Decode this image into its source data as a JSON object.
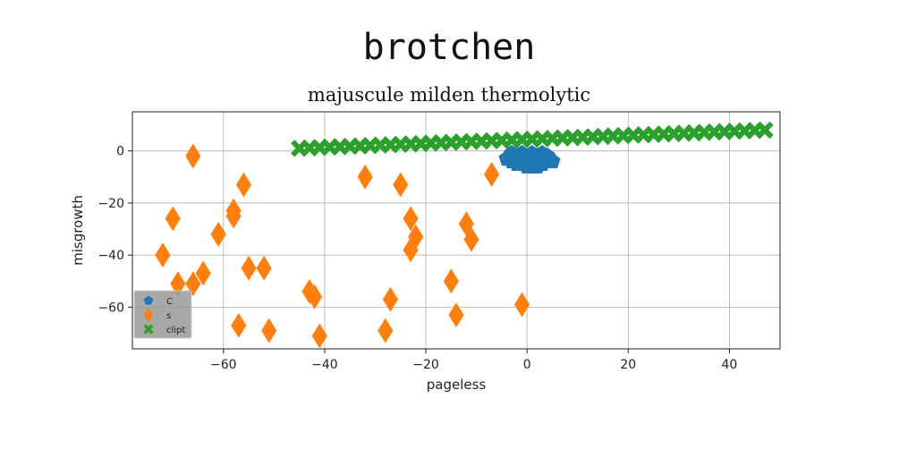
{
  "chart_data": {
    "type": "scatter",
    "title": "brotchen",
    "subtitle": "majuscule milden thermolytic",
    "xlabel": "pageless",
    "ylabel": "misgrowth",
    "xlim": [
      -78,
      50
    ],
    "ylim": [
      -76,
      15
    ],
    "xticks": [
      -60,
      -40,
      -20,
      0,
      20,
      40
    ],
    "yticks": [
      0,
      -20,
      -40,
      -60
    ],
    "grid": true,
    "legend_position": "lower-left",
    "series": [
      {
        "name": "C",
        "marker": "pentagon",
        "color": "#1f77b4",
        "points": [
          [
            -4,
            -3
          ],
          [
            -3,
            -4
          ],
          [
            -2,
            -2
          ],
          [
            -1,
            -5
          ],
          [
            0,
            -3
          ],
          [
            1,
            -4
          ],
          [
            2,
            -2
          ],
          [
            3,
            -5
          ],
          [
            4,
            -3
          ],
          [
            5,
            -4
          ],
          [
            -3,
            -1
          ],
          [
            -1,
            -1
          ],
          [
            1,
            -1
          ],
          [
            3,
            -1
          ],
          [
            0,
            -6
          ],
          [
            1,
            -6
          ],
          [
            2,
            -6
          ],
          [
            -2,
            -5
          ],
          [
            2,
            -3
          ],
          [
            4,
            -2
          ]
        ]
      },
      {
        "name": "s",
        "marker": "diamond",
        "color": "#ff7f0e",
        "points": [
          [
            -66,
            -2
          ],
          [
            -70,
            -26
          ],
          [
            -72,
            -40
          ],
          [
            -69,
            -51
          ],
          [
            -66,
            -51
          ],
          [
            -64,
            -47
          ],
          [
            -56,
            -13
          ],
          [
            -58,
            -23
          ],
          [
            -58,
            -25
          ],
          [
            -61,
            -32
          ],
          [
            -55,
            -45
          ],
          [
            -52,
            -45
          ],
          [
            -57,
            -67
          ],
          [
            -51,
            -69
          ],
          [
            -43,
            -54
          ],
          [
            -42,
            -56
          ],
          [
            -41,
            -71
          ],
          [
            -32,
            -10
          ],
          [
            -25,
            -13
          ],
          [
            -28,
            -69
          ],
          [
            -27,
            -57
          ],
          [
            -23,
            -26
          ],
          [
            -22,
            -33
          ],
          [
            -23,
            -38
          ],
          [
            -15,
            -50
          ],
          [
            -14,
            -63
          ],
          [
            -12,
            -28
          ],
          [
            -11,
            -34
          ],
          [
            -7,
            -9
          ],
          [
            -1,
            -59
          ]
        ]
      },
      {
        "name": "clipt",
        "marker": "x",
        "color": "#2ca02c",
        "line": {
          "x_start": -45,
          "x_end": 47,
          "y_start": 1,
          "y_end": 8,
          "step": 2
        }
      }
    ]
  }
}
